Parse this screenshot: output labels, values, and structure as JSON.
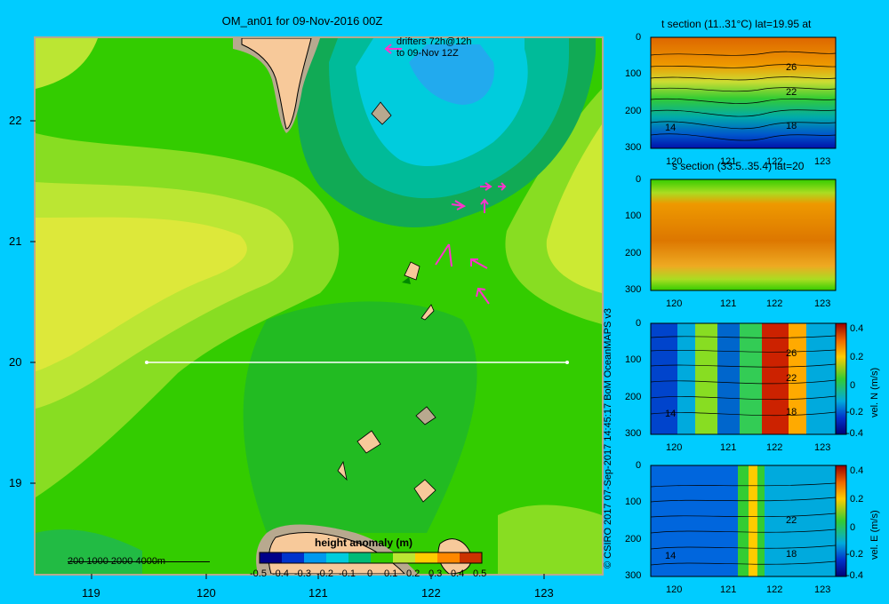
{
  "map": {
    "title": "OM_an01 for 09-Nov-2016 00Z",
    "drifters_line1": "drifters 72h@12h",
    "drifters_line2": "to 09-Nov 12Z",
    "x_ticks": [
      "119",
      "120",
      "121",
      "122",
      "123"
    ],
    "y_ticks": [
      "22",
      "21",
      "20",
      "19"
    ],
    "depth_legend": "200  1000  2000  4000m",
    "colorbar_title": "height anomaly (m)",
    "colorbar_ticks": [
      "-0.5",
      "-0.4",
      "-0.3",
      "-0.2",
      "-0.1",
      "0",
      "0.1",
      "0.2",
      "0.3",
      "0.4",
      "0.5"
    ]
  },
  "credit": "© CSIRO 2017   07-Sep-2017 14:45:17 BoM OceanMAPS v3",
  "sections": [
    {
      "title": "t section (11..31°C) lat=19.95 at",
      "x_ticks": [
        "120",
        "121",
        "122",
        "123"
      ],
      "y_ticks": [
        "0",
        "100",
        "200",
        "300"
      ],
      "contour_labels": [
        "26",
        "22",
        "18",
        "14"
      ]
    },
    {
      "title": "s section (33.5..35.4) lat=20",
      "x_ticks": [
        "120",
        "121",
        "122",
        "123"
      ],
      "y_ticks": [
        "0",
        "100",
        "200",
        "300"
      ],
      "contour_labels": []
    },
    {
      "title": "",
      "x_ticks": [
        "120",
        "121",
        "122",
        "123"
      ],
      "y_ticks": [
        "0",
        "100",
        "200",
        "300"
      ],
      "contour_labels": [
        "26",
        "22",
        "18",
        "14"
      ],
      "colorbar_label": "vel. N (m/s)",
      "colorbar_ticks": [
        "0.4",
        "0.2",
        "0",
        "-0.2",
        "-0.4"
      ]
    },
    {
      "title": "",
      "x_ticks": [
        "120",
        "121",
        "122",
        "123"
      ],
      "y_ticks": [
        "0",
        "100",
        "200",
        "300"
      ],
      "contour_labels": [
        "22",
        "18",
        "14"
      ],
      "colorbar_label": "vel. E (m/s)",
      "colorbar_ticks": [
        "0.4",
        "0.2",
        "0",
        "-0.2",
        "-0.4"
      ]
    }
  ],
  "colors": {
    "background": "#00ccff",
    "land": "#f7c99a",
    "shelf": "#b8a98f",
    "drifter": "#ff33cc"
  }
}
